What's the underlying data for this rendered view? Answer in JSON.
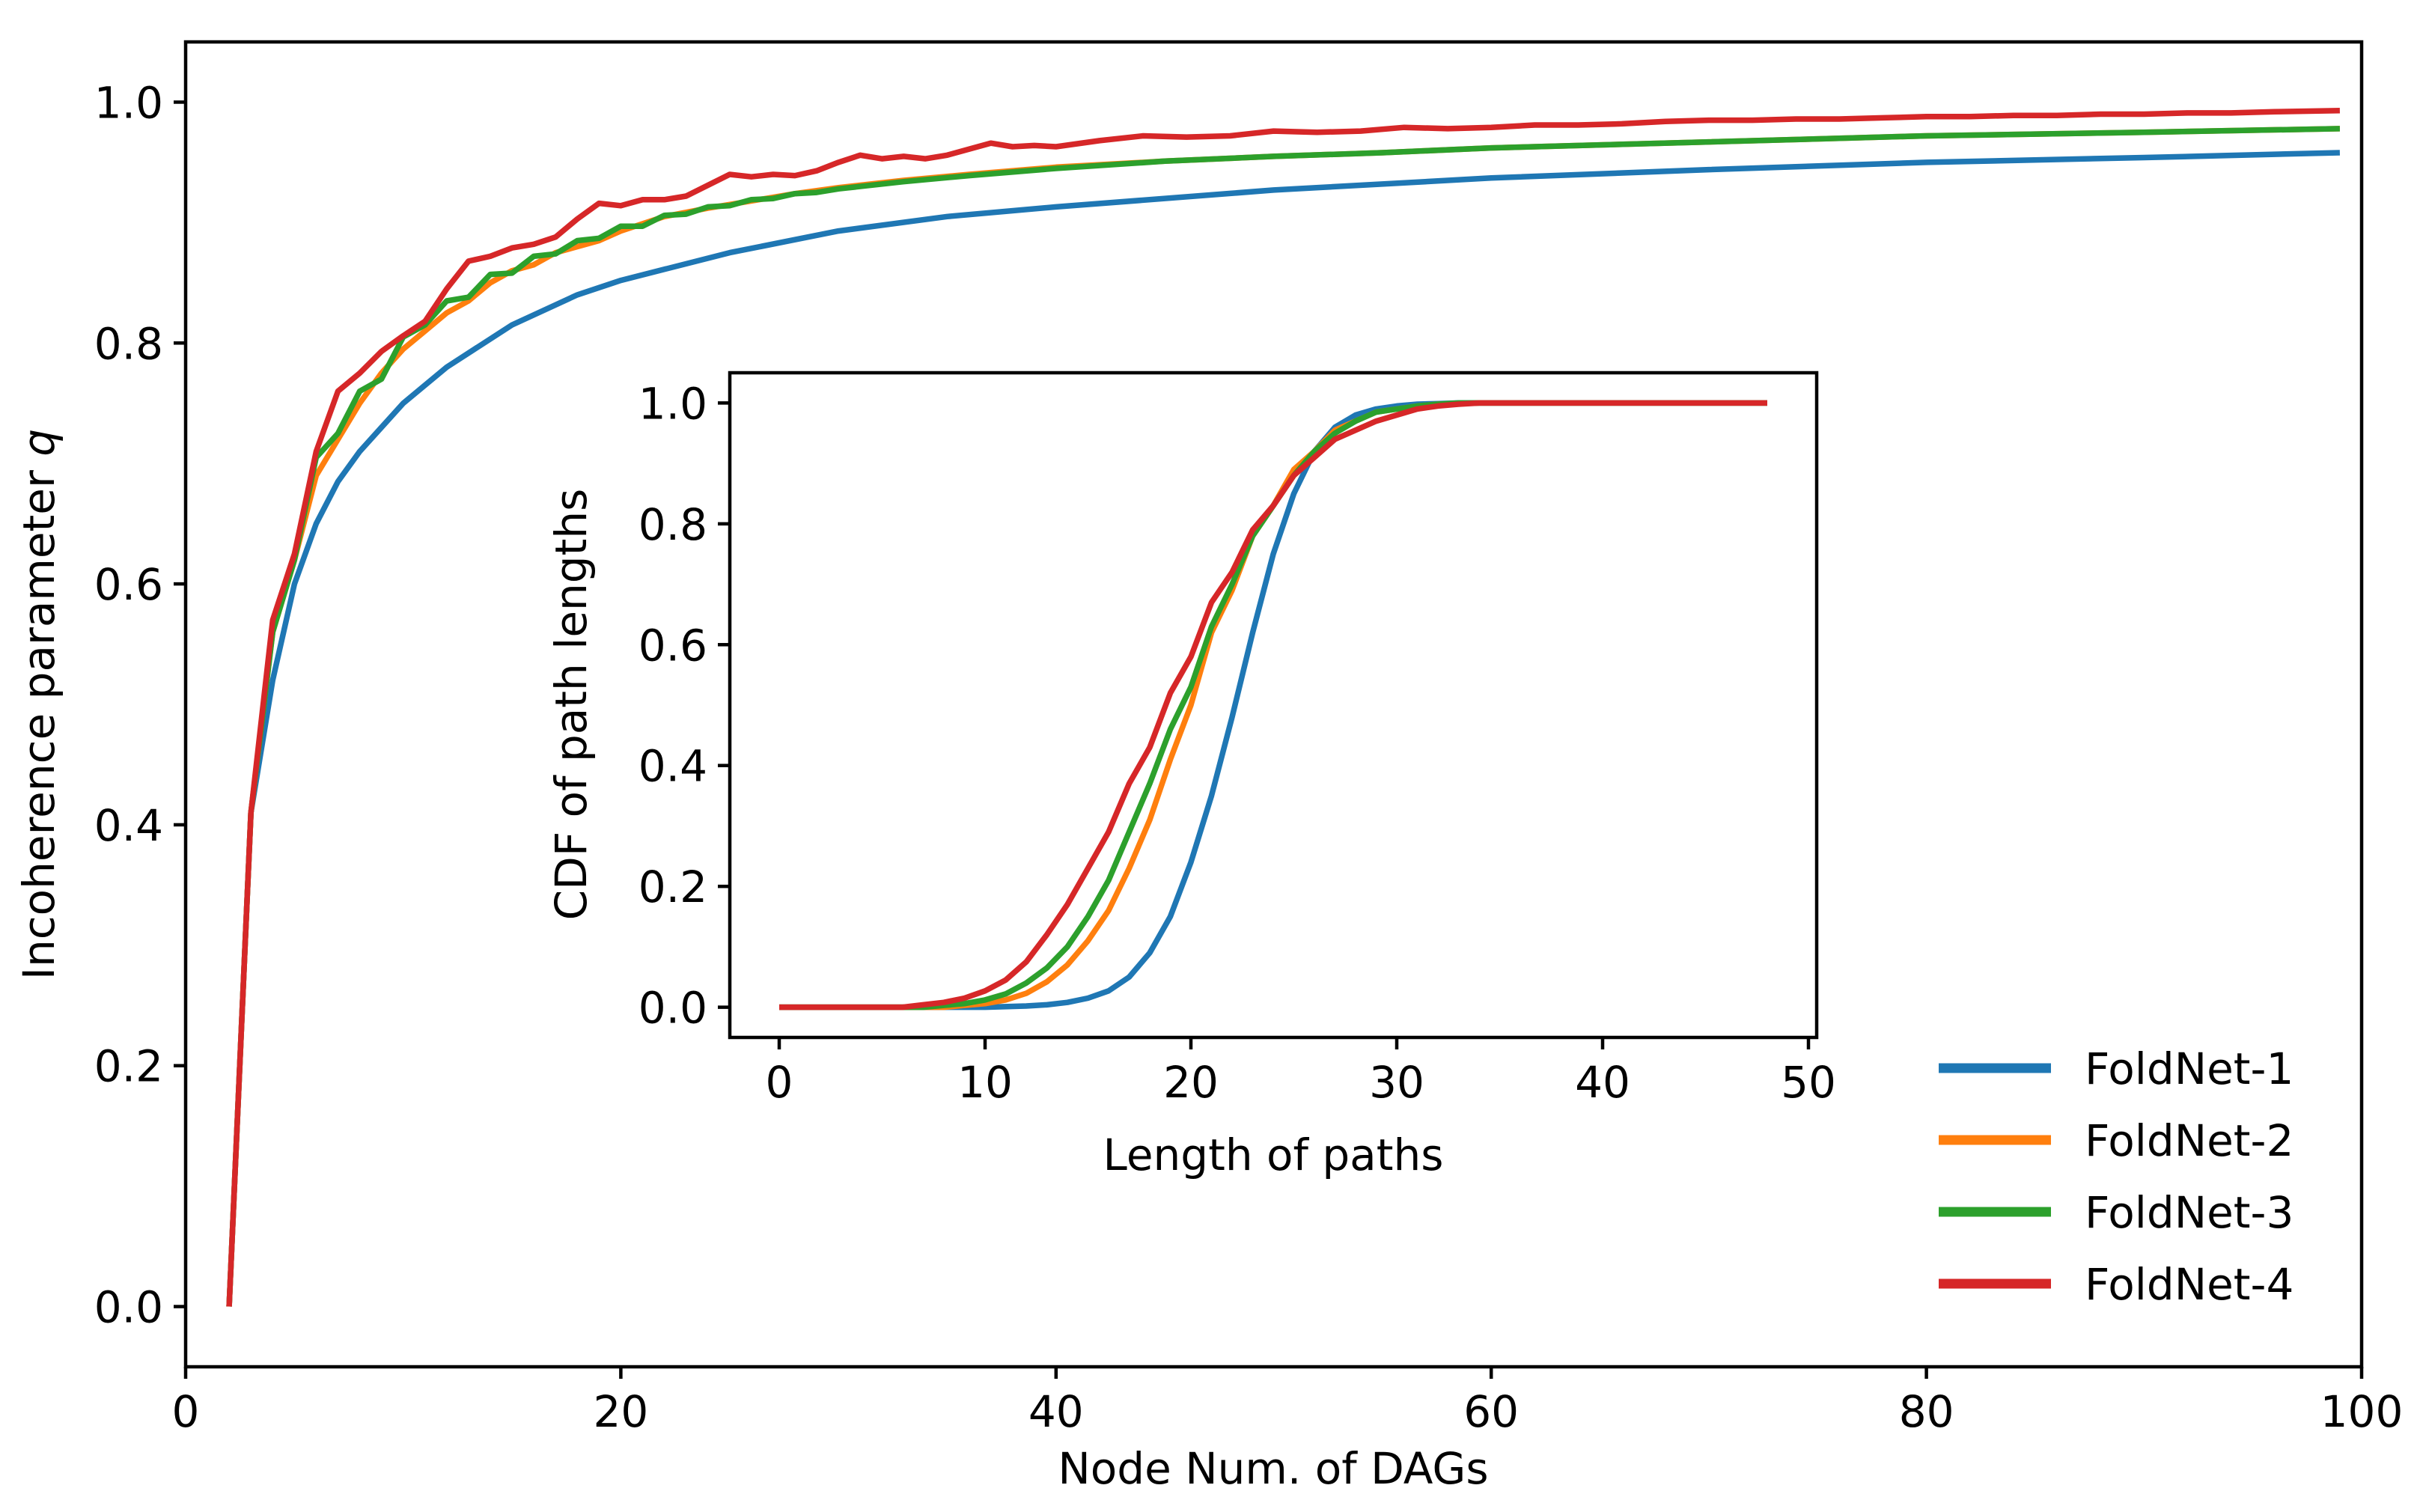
{
  "chart_data": [
    {
      "type": "line",
      "title": "",
      "xlabel": "Node Num. of DAGs",
      "ylabel_prefix": "Incoherence parameter ",
      "ylabel_var": "q",
      "xlim": [
        0,
        100
      ],
      "ylim": [
        -0.05,
        1.05
      ],
      "x_ticks": [
        0,
        20,
        40,
        60,
        80,
        100
      ],
      "y_ticks": [
        0.0,
        0.2,
        0.4,
        0.6,
        0.8,
        1.0
      ],
      "x_tick_labels": [
        "0",
        "20",
        "40",
        "60",
        "80",
        "100"
      ],
      "y_tick_labels": [
        "0.0",
        "0.2",
        "0.4",
        "0.6",
        "0.8",
        "1.0"
      ],
      "grid": false,
      "legend_position": "bottom-right",
      "series": [
        {
          "name": "FoldNet-1",
          "color": "#1f77b4",
          "x": [
            2,
            3,
            4,
            5,
            6,
            7,
            8,
            10,
            12,
            15,
            18,
            20,
            25,
            30,
            35,
            40,
            50,
            60,
            70,
            80,
            90,
            99
          ],
          "y": [
            0.0,
            0.41,
            0.52,
            0.6,
            0.65,
            0.685,
            0.71,
            0.75,
            0.78,
            0.815,
            0.84,
            0.852,
            0.875,
            0.893,
            0.905,
            0.913,
            0.927,
            0.937,
            0.944,
            0.95,
            0.954,
            0.958
          ]
        },
        {
          "name": "FoldNet-2",
          "color": "#ff7f0e",
          "x": [
            2,
            3,
            4,
            5,
            6,
            7,
            8,
            9,
            10,
            11,
            12,
            13,
            14,
            15,
            16,
            17,
            18,
            19,
            20,
            22,
            24,
            26,
            28,
            30,
            33,
            36,
            40,
            45,
            50,
            55,
            60,
            70,
            80,
            90,
            99
          ],
          "y": [
            0.0,
            0.41,
            0.56,
            0.62,
            0.69,
            0.72,
            0.75,
            0.775,
            0.795,
            0.81,
            0.825,
            0.835,
            0.85,
            0.86,
            0.865,
            0.875,
            0.88,
            0.885,
            0.893,
            0.905,
            0.912,
            0.918,
            0.924,
            0.929,
            0.935,
            0.94,
            0.946,
            0.951,
            0.955,
            0.958,
            0.962,
            0.967,
            0.972,
            0.975,
            0.978
          ]
        },
        {
          "name": "FoldNet-3",
          "color": "#2ca02c",
          "x": [
            2,
            3,
            4,
            5,
            6,
            7,
            8,
            9,
            10,
            11,
            12,
            13,
            14,
            15,
            16,
            17,
            18,
            19,
            20,
            21,
            22,
            23,
            24,
            25,
            26,
            27,
            28,
            29,
            30,
            33,
            36,
            40,
            45,
            50,
            55,
            60,
            70,
            80,
            90,
            99
          ],
          "y": [
            0.0,
            0.41,
            0.56,
            0.62,
            0.705,
            0.725,
            0.76,
            0.77,
            0.805,
            0.815,
            0.835,
            0.838,
            0.857,
            0.858,
            0.872,
            0.874,
            0.885,
            0.887,
            0.897,
            0.897,
            0.906,
            0.907,
            0.913,
            0.914,
            0.919,
            0.92,
            0.924,
            0.925,
            0.928,
            0.934,
            0.939,
            0.945,
            0.951,
            0.955,
            0.958,
            0.962,
            0.967,
            0.972,
            0.975,
            0.978
          ]
        },
        {
          "name": "FoldNet-4",
          "color": "#d62728",
          "x": [
            2,
            3,
            4,
            5,
            6,
            7,
            8,
            9,
            10,
            11,
            12,
            13,
            14,
            15,
            16,
            17,
            18,
            19,
            20,
            21,
            22,
            23,
            24,
            25,
            26,
            27,
            28,
            29,
            30,
            31,
            32,
            33,
            34,
            35,
            36,
            37,
            38,
            39,
            40,
            42,
            44,
            46,
            48,
            50,
            52,
            54,
            56,
            58,
            60,
            62,
            64,
            66,
            68,
            70,
            72,
            74,
            76,
            78,
            80,
            82,
            84,
            86,
            88,
            90,
            92,
            94,
            96,
            99
          ],
          "y": [
            0.0,
            0.41,
            0.57,
            0.625,
            0.71,
            0.76,
            0.775,
            0.793,
            0.806,
            0.818,
            0.845,
            0.868,
            0.872,
            0.879,
            0.882,
            0.888,
            0.903,
            0.916,
            0.914,
            0.919,
            0.919,
            0.922,
            0.931,
            0.94,
            0.938,
            0.94,
            0.939,
            0.943,
            0.95,
            0.956,
            0.953,
            0.955,
            0.953,
            0.956,
            0.961,
            0.966,
            0.963,
            0.964,
            0.963,
            0.968,
            0.972,
            0.971,
            0.972,
            0.976,
            0.975,
            0.976,
            0.979,
            0.978,
            0.979,
            0.981,
            0.981,
            0.982,
            0.984,
            0.985,
            0.985,
            0.986,
            0.986,
            0.987,
            0.988,
            0.988,
            0.989,
            0.989,
            0.99,
            0.99,
            0.991,
            0.991,
            0.992,
            0.993
          ]
        }
      ]
    },
    {
      "type": "line",
      "title": "",
      "xlabel": "Length of paths",
      "ylabel": "CDF of path lengths",
      "xlim": [
        -2.4,
        50.4
      ],
      "ylim": [
        -0.05,
        1.05
      ],
      "x_ticks": [
        0,
        10,
        20,
        30,
        40,
        50
      ],
      "y_ticks": [
        0.0,
        0.2,
        0.4,
        0.6,
        0.8,
        1.0
      ],
      "x_tick_labels": [
        "0",
        "10",
        "20",
        "30",
        "40",
        "50"
      ],
      "y_tick_labels": [
        "0.0",
        "0.2",
        "0.4",
        "0.6",
        "0.8",
        "1.0"
      ],
      "grid": false,
      "series": [
        {
          "name": "FoldNet-1",
          "color": "#1f77b4",
          "x": [
            0,
            10,
            12,
            13,
            14,
            15,
            16,
            17,
            18,
            19,
            20,
            21,
            22,
            23,
            24,
            25,
            26,
            27,
            28,
            29,
            30,
            31,
            32,
            33,
            34,
            35,
            40,
            48
          ],
          "y": [
            0.0,
            0.0,
            0.002,
            0.004,
            0.008,
            0.015,
            0.027,
            0.05,
            0.09,
            0.15,
            0.24,
            0.35,
            0.48,
            0.62,
            0.75,
            0.85,
            0.92,
            0.96,
            0.98,
            0.99,
            0.995,
            0.998,
            0.999,
            1.0,
            1.0,
            1.0,
            1.0,
            1.0
          ]
        },
        {
          "name": "FoldNet-2",
          "color": "#ff7f0e",
          "x": [
            0,
            8,
            9,
            10,
            11,
            12,
            13,
            14,
            15,
            16,
            17,
            18,
            19,
            20,
            21,
            22,
            23,
            24,
            25,
            26,
            27,
            28,
            29,
            30,
            31,
            32,
            33,
            34,
            35,
            40,
            48
          ],
          "y": [
            0.0,
            0.0,
            0.003,
            0.006,
            0.012,
            0.023,
            0.042,
            0.07,
            0.11,
            0.16,
            0.23,
            0.31,
            0.41,
            0.5,
            0.62,
            0.69,
            0.78,
            0.83,
            0.89,
            0.92,
            0.955,
            0.97,
            0.985,
            0.99,
            0.995,
            0.998,
            0.999,
            1.0,
            1.0,
            1.0,
            1.0
          ]
        },
        {
          "name": "FoldNet-3",
          "color": "#2ca02c",
          "x": [
            0,
            7,
            8,
            9,
            10,
            11,
            12,
            13,
            14,
            15,
            16,
            17,
            18,
            19,
            20,
            21,
            22,
            23,
            24,
            25,
            26,
            27,
            28,
            29,
            30,
            31,
            32,
            33,
            34,
            35,
            40,
            48
          ],
          "y": [
            0.0,
            0.0,
            0.003,
            0.006,
            0.012,
            0.022,
            0.04,
            0.065,
            0.1,
            0.15,
            0.21,
            0.29,
            0.37,
            0.46,
            0.53,
            0.63,
            0.7,
            0.78,
            0.83,
            0.88,
            0.92,
            0.95,
            0.97,
            0.985,
            0.99,
            0.995,
            0.998,
            1.0,
            1.0,
            1.0,
            1.0,
            1.0
          ]
        },
        {
          "name": "FoldNet-4",
          "color": "#d62728",
          "x": [
            0,
            6,
            7,
            8,
            9,
            10,
            11,
            12,
            13,
            14,
            15,
            16,
            17,
            18,
            19,
            20,
            21,
            22,
            23,
            24,
            25,
            26,
            27,
            28,
            29,
            30,
            31,
            32,
            33,
            34,
            35,
            40,
            48
          ],
          "y": [
            0.0,
            0.0,
            0.004,
            0.008,
            0.015,
            0.027,
            0.045,
            0.075,
            0.12,
            0.17,
            0.23,
            0.29,
            0.37,
            0.43,
            0.52,
            0.58,
            0.67,
            0.72,
            0.79,
            0.83,
            0.88,
            0.91,
            0.94,
            0.955,
            0.97,
            0.98,
            0.99,
            0.995,
            0.998,
            1.0,
            1.0,
            1.0,
            1.0
          ]
        }
      ]
    }
  ]
}
